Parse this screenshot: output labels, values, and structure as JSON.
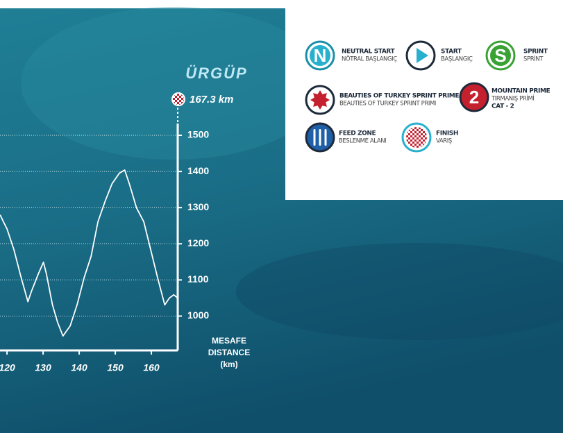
{
  "chart_data": {
    "type": "line",
    "annotation": "ÜRGÜP",
    "finish_label": "167.3 km",
    "xlabel": [
      "MESAFE",
      "DISTANCE",
      "(km)"
    ],
    "x": [
      118.1,
      119.0,
      120.0,
      121.9,
      123.9,
      125.8,
      126.8,
      128.7,
      130.1,
      130.9,
      132.6,
      134.0,
      135.5,
      137.5,
      139.4,
      141.4,
      143.3,
      145.2,
      147.2,
      149.1,
      151.1,
      152.6,
      153.9,
      155.9,
      157.9,
      159.8,
      161.7,
      163.7,
      165.0,
      166.2,
      167.3
    ],
    "series": [
      {
        "color": "#ffffff",
        "values": [
          1280,
          1261,
          1241,
          1184,
          1107,
          1040,
          1069,
          1117,
          1149,
          1117,
          1031,
          983,
          945,
          973,
          1031,
          1107,
          1165,
          1261,
          1318,
          1366,
          1395,
          1404,
          1366,
          1299,
          1261,
          1184,
          1107,
          1031,
          1050,
          1059,
          1050
        ]
      }
    ],
    "xlim": [
      118.1,
      167.3
    ],
    "xticks": [
      120,
      130,
      140,
      150,
      160
    ],
    "ylim": [
      905,
      1500
    ],
    "yticks": [
      1000,
      1100,
      1200,
      1300,
      1400,
      1500
    ],
    "grid": true
  },
  "legend": {
    "items": [
      {
        "icon": "N",
        "title": "NEUTRAL START",
        "subtitle": [
          "NÖTRAL BAŞLANGIÇ"
        ]
      },
      {
        "title": "START",
        "subtitle": [
          "BAŞLANGIÇ"
        ]
      },
      {
        "icon": "S",
        "title": "SPRINT",
        "subtitle": [
          "SPRİNT"
        ]
      },
      {
        "title": "BEAUTIES OF TURKEY SPRINT PRIME",
        "subtitle": [
          "BEAUTIES OF TURKEY SPRINT PRIMI"
        ]
      },
      {
        "icon": "2",
        "title": "MOUNTAIN PRIME",
        "subtitle": [
          "TIRMANIŞ PRİMİ",
          "CAT - 2"
        ]
      },
      {
        "title": "FEED ZONE",
        "subtitle": [
          "BESLENME ALANI"
        ]
      },
      {
        "title": "FINISH",
        "subtitle": [
          "VARIŞ"
        ]
      }
    ]
  }
}
